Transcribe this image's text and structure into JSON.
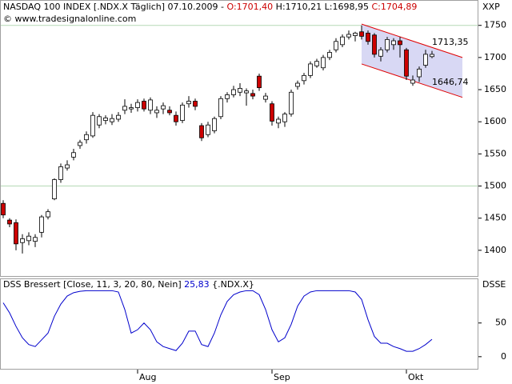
{
  "chart_data": [
    {
      "type": "candlestick",
      "title": "NASDAQ 100 INDEX [.NDX.X  Täglich] 07.10.2009 -",
      "ohlc_labels": [
        "O:1701,40",
        "H:1710,21",
        "L:1698,95",
        "C:1704,89"
      ],
      "ohlc_label_colors": [
        "#cc0000",
        "#000000",
        "#000000",
        "#cc0000"
      ],
      "copyright": "© www.tradesignalonline.com",
      "axis_label": "XXP",
      "open": [
        1473,
        1447,
        1443,
        1412,
        1415,
        1414,
        1428,
        1452,
        1480,
        1510,
        1528,
        1545,
        1563,
        1572,
        1578,
        1595,
        1602,
        1600,
        1604,
        1618,
        1620,
        1622,
        1632,
        1618,
        1614,
        1620,
        1618,
        1610,
        1602,
        1628,
        1632,
        1594,
        1580,
        1586,
        1608,
        1636,
        1642,
        1646,
        1645,
        1644,
        1671,
        1635,
        1628,
        1598,
        1600,
        1612,
        1655,
        1664,
        1672,
        1687,
        1684,
        1700,
        1712,
        1720,
        1732,
        1734,
        1740,
        1738,
        1735,
        1702,
        1712,
        1720,
        1726,
        1712,
        1660,
        1670,
        1688,
        1701.4
      ],
      "high": [
        1478,
        1450,
        1448,
        1425,
        1428,
        1425,
        1455,
        1464,
        1512,
        1535,
        1540,
        1558,
        1572,
        1585,
        1615,
        1612,
        1610,
        1612,
        1615,
        1635,
        1628,
        1635,
        1636,
        1638,
        1624,
        1630,
        1624,
        1616,
        1630,
        1640,
        1636,
        1598,
        1600,
        1608,
        1640,
        1646,
        1656,
        1660,
        1652,
        1650,
        1675,
        1645,
        1632,
        1608,
        1615,
        1650,
        1664,
        1676,
        1694,
        1698,
        1704,
        1712,
        1730,
        1736,
        1742,
        1740,
        1750,
        1742,
        1738,
        1716,
        1732,
        1730,
        1732,
        1715,
        1672,
        1686,
        1712,
        1710.21
      ],
      "low": [
        1450,
        1436,
        1400,
        1395,
        1408,
        1405,
        1420,
        1448,
        1478,
        1505,
        1524,
        1540,
        1558,
        1566,
        1575,
        1590,
        1596,
        1595,
        1600,
        1612,
        1614,
        1616,
        1616,
        1612,
        1606,
        1612,
        1610,
        1594,
        1598,
        1622,
        1618,
        1570,
        1576,
        1582,
        1604,
        1630,
        1638,
        1640,
        1625,
        1635,
        1648,
        1630,
        1594,
        1590,
        1592,
        1608,
        1650,
        1658,
        1668,
        1684,
        1680,
        1696,
        1708,
        1716,
        1728,
        1725,
        1728,
        1720,
        1700,
        1694,
        1708,
        1712,
        1700,
        1665,
        1656,
        1662,
        1684,
        1698.95
      ],
      "close": [
        1455,
        1441,
        1410,
        1418,
        1422,
        1420,
        1452,
        1460,
        1510,
        1530,
        1533,
        1552,
        1568,
        1580,
        1610,
        1608,
        1606,
        1605,
        1610,
        1624,
        1622,
        1630,
        1620,
        1634,
        1618,
        1625,
        1614,
        1600,
        1626,
        1632,
        1624,
        1575,
        1595,
        1605,
        1636,
        1642,
        1650,
        1652,
        1648,
        1640,
        1653,
        1640,
        1601,
        1604,
        1612,
        1646,
        1660,
        1672,
        1690,
        1694,
        1700,
        1708,
        1725,
        1732,
        1736,
        1738,
        1733,
        1725,
        1705,
        1712,
        1728,
        1726,
        1720,
        1671,
        1665,
        1682,
        1705,
        1704.89
      ],
      "up_color": "#ffffff",
      "down_color": "#cc0000",
      "ylim": [
        1360,
        1787
      ],
      "yticks": [
        1400,
        1450,
        1500,
        1550,
        1600,
        1650,
        1700,
        1750
      ],
      "grid_lines": [
        1500,
        1750
      ],
      "grid_color": "#b5d9b5",
      "channel": {
        "x": [
          56,
          71.75
        ],
        "upper": [
          1752,
          1700
        ],
        "lower": [
          1690,
          1638
        ],
        "upper_label": "1713,35",
        "lower_label": "1646,74",
        "color": "#e00000",
        "fill": "#d8d8f4"
      }
    },
    {
      "type": "line",
      "title": "DSS Bressert [Close, 11, 3, 20, 80, Nein]",
      "value_label": "25,83",
      "symbol": "{.NDX.X}",
      "axis_label": "DSSE",
      "color": "#0000cc",
      "categories": [
        null,
        null,
        null,
        null,
        null,
        null,
        null,
        null,
        null,
        null,
        null,
        null,
        null,
        null,
        null,
        null,
        null,
        null,
        null,
        null,
        null,
        "Aug",
        null,
        null,
        null,
        null,
        null,
        null,
        null,
        null,
        null,
        null,
        null,
        null,
        null,
        null,
        null,
        null,
        null,
        null,
        null,
        null,
        "Sep",
        null,
        null,
        null,
        null,
        null,
        null,
        null,
        null,
        null,
        null,
        null,
        null,
        null,
        null,
        null,
        null,
        null,
        null,
        null,
        null,
        "Okt",
        null,
        null,
        null,
        null
      ],
      "values": [
        80,
        65,
        45,
        28,
        18,
        15,
        25,
        35,
        60,
        78,
        90,
        95,
        97,
        98,
        98,
        98,
        98,
        98,
        96,
        70,
        35,
        40,
        50,
        40,
        22,
        15,
        12,
        9,
        20,
        38,
        38,
        18,
        15,
        35,
        62,
        82,
        92,
        96,
        98,
        98,
        92,
        70,
        40,
        22,
        28,
        48,
        75,
        90,
        96,
        98,
        98,
        98,
        98,
        98,
        98,
        96,
        85,
        55,
        30,
        20,
        20,
        15,
        12,
        8,
        8,
        12,
        18,
        25.83
      ],
      "ylim": [
        -18,
        115
      ],
      "yticks": [
        0,
        50
      ]
    }
  ]
}
